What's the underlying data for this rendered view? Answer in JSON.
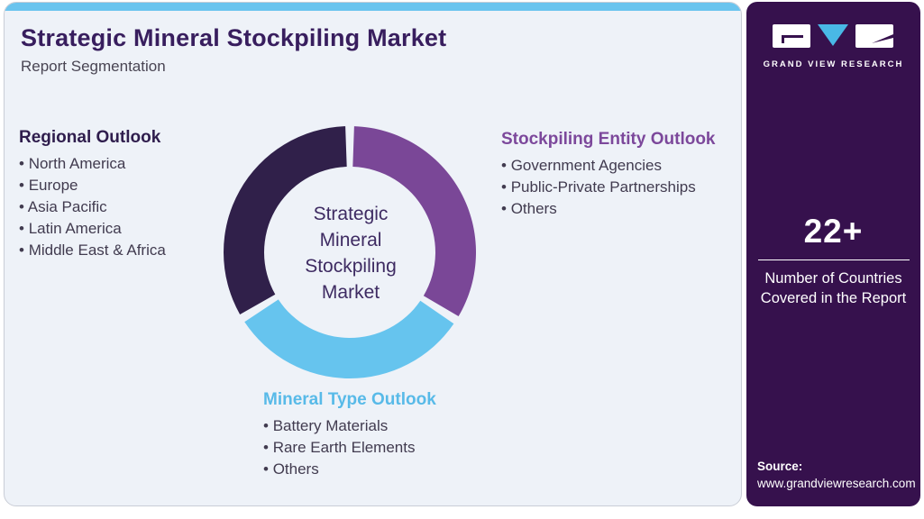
{
  "header": {
    "title": "Strategic Mineral Stockpiling Market",
    "subtitle": "Report Segmentation"
  },
  "sections": {
    "regional": {
      "heading": "Regional Outlook",
      "items": [
        "North America",
        "Europe",
        "Asia Pacific",
        "Latin America",
        "Middle East & Africa"
      ]
    },
    "entity": {
      "heading": "Stockpiling Entity Outlook",
      "items": [
        "Government Agencies",
        "Public-Private Partnerships",
        "Others"
      ]
    },
    "mineral": {
      "heading": "Mineral Type Outlook",
      "items": [
        "Battery Materials",
        "Rare Earth Elements",
        "Others"
      ]
    }
  },
  "chart_data": {
    "type": "pie",
    "variant": "donut",
    "title": "Strategic Mineral Stockpiling Market Report Segmentation",
    "center_label": "Strategic Mineral Stockpiling Market",
    "outer_radius": 140,
    "inner_radius": 95,
    "legend_position": "around-chart",
    "segments": [
      {
        "name": "Stockpiling Entity Outlook",
        "color": "#7a4797",
        "start_deg": 2,
        "end_deg": 120.5
      },
      {
        "name": "Mineral Type Outlook",
        "color": "#66c4ee",
        "start_deg": 124.5,
        "end_deg": 236.5
      },
      {
        "name": "Regional Outlook",
        "color": "#30204a",
        "start_deg": 240.5,
        "end_deg": 358
      }
    ]
  },
  "sidebar": {
    "logo": {
      "brand": "GRAND VIEW RESEARCH"
    },
    "stat": {
      "value": "22+",
      "caption": "Number of Countries Covered in the Report"
    },
    "source": {
      "label": "Source:",
      "url": "www.grandviewresearch.com"
    }
  },
  "colors": {
    "sidebar_bg": "#36114d",
    "card_bg": "#eef2f8",
    "topbar_accent": "#6ac4ee",
    "title_text": "#381e5e",
    "segment_dark": "#30204a",
    "segment_purple": "#7a4797",
    "segment_blue": "#66c4ee",
    "heading_regional": "#2f1d4d",
    "heading_entity": "#7c489b",
    "heading_mineral": "#58bae8",
    "logo_triangle_blue": "#49b8e6"
  }
}
